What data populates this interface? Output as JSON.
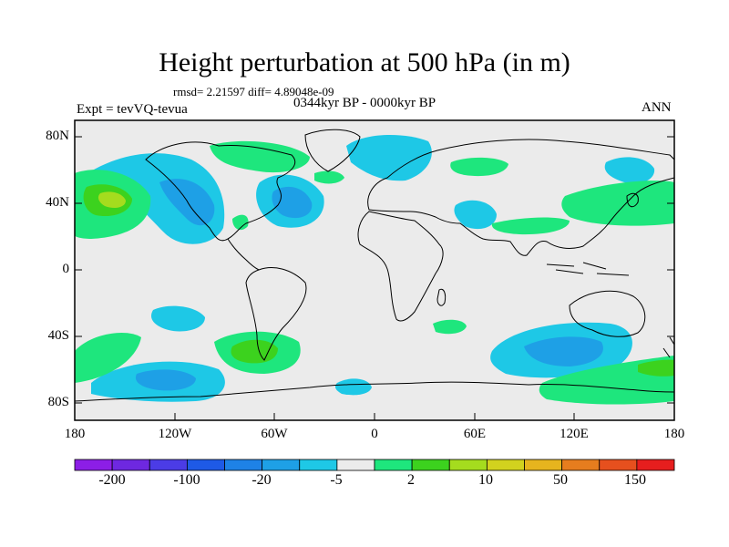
{
  "title": "Height perturbation at 500 hPa (in m)",
  "stats": "rmsd= 2.21597  diff= 4.89048e-09",
  "experiment": "Expt = tevVQ-tevua",
  "period": "0344kyr BP - 0000kyr BP",
  "season": "ANN",
  "map": {
    "projection": "cylindrical equidistant",
    "lon_range": [
      -180,
      180
    ],
    "lat_range": [
      -90,
      90
    ],
    "lat_labels": [
      "80N",
      "40N",
      "0",
      "40S",
      "80S"
    ],
    "lon_labels": [
      "180",
      "120W",
      "60W",
      "0",
      "60E",
      "120E",
      "180"
    ],
    "background_color": "#ebebeb"
  },
  "colorbar": {
    "labels": [
      "-200",
      "-100",
      "-20",
      "-5",
      "2",
      "10",
      "50",
      "150"
    ],
    "colors": [
      "#8c1ee6",
      "#6e28e0",
      "#4b3ce6",
      "#1e5ae6",
      "#1e82e6",
      "#1ea0e6",
      "#1ec8e6",
      "#ebebeb",
      "#1ee67d",
      "#3cd21e",
      "#a5dc1e",
      "#d2d21e",
      "#e6b41e",
      "#e67d1e",
      "#e6501e",
      "#e61e1e"
    ]
  }
}
